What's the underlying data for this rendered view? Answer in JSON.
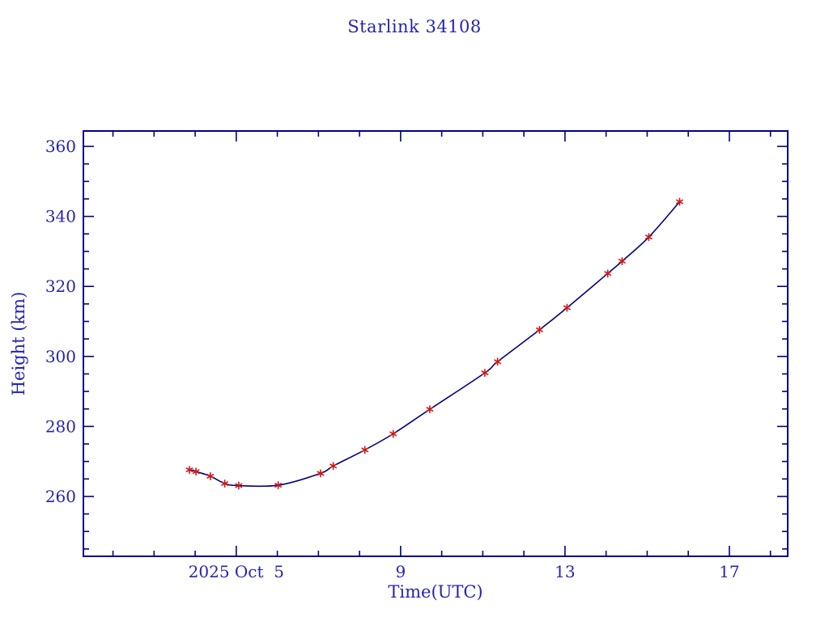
{
  "title": "Starlink 34108",
  "colors": {
    "background": "#ffffff",
    "frame": "#00008b",
    "curve": "#000087",
    "marker": "#cc1818",
    "text": "#2424b4"
  },
  "chart_data": {
    "type": "line",
    "title": "Starlink 34108",
    "xlabel": "Time(UTC)",
    "ylabel": "Height (km)",
    "x_unit": "day of October 2025 (UTC)",
    "xlim": [
      1.28,
      18.42
    ],
    "ylim": [
      242.9,
      364.4
    ],
    "x_major_ticks": [
      5,
      9,
      13,
      17
    ],
    "x_major_tick_labels": [
      "2025 Oct  5",
      "9",
      "13",
      "17"
    ],
    "x_minor_tick_step": 1,
    "y_major_ticks": [
      260,
      280,
      300,
      320,
      340,
      360
    ],
    "y_major_tick_labels": [
      "260",
      "280",
      "300",
      "320",
      "340",
      "360"
    ],
    "y_minor_tick_step": 5,
    "grid": false,
    "legend": null,
    "tick_direction": "in",
    "series": [
      {
        "name": "height",
        "marker": "asterisk",
        "x": [
          3.86,
          4.02,
          4.37,
          4.72,
          5.06,
          6.02,
          7.05,
          7.36,
          8.13,
          8.82,
          9.71,
          11.05,
          11.36,
          12.38,
          13.05,
          14.04,
          14.39,
          15.04,
          15.79
        ],
        "y": [
          267.6,
          267.1,
          265.8,
          263.7,
          263.1,
          263.2,
          266.6,
          268.7,
          273.3,
          277.9,
          284.9,
          295.3,
          298.5,
          307.6,
          313.9,
          323.7,
          327.2,
          334.1,
          344.2
        ]
      }
    ]
  }
}
